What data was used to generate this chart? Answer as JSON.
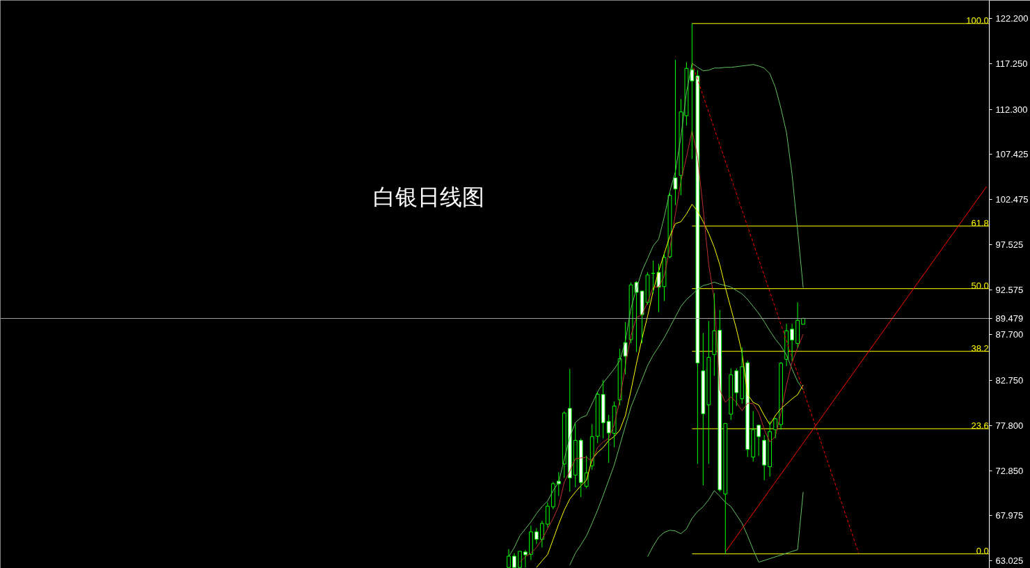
{
  "chart_data": {
    "type": "candlestick",
    "title": "白银日线图",
    "categories": [
      null,
      null,
      null,
      null,
      null,
      null,
      null,
      null,
      null,
      null,
      null,
      null,
      null,
      null,
      null,
      null,
      null,
      null,
      null,
      null,
      null,
      null,
      null,
      null,
      null,
      null,
      null,
      null,
      null,
      null,
      null,
      null,
      null,
      null,
      null,
      null,
      null,
      null,
      null,
      null,
      null,
      null,
      null,
      null,
      null,
      null,
      null,
      null,
      null,
      null,
      null,
      null,
      null,
      null,
      null,
      null,
      null,
      null,
      null,
      null,
      null,
      null,
      null,
      null,
      null,
      null,
      null,
      null,
      null,
      null,
      null,
      null,
      null,
      null,
      null,
      null,
      null,
      null,
      null,
      null,
      null,
      null,
      null,
      null,
      null,
      null,
      null,
      null,
      null,
      null,
      null,
      null,
      null,
      null,
      null,
      null,
      null,
      null,
      null,
      null,
      null,
      null,
      null,
      null,
      null,
      null,
      null,
      null,
      null,
      null,
      null,
      null,
      null,
      null,
      null,
      null,
      null,
      null,
      null,
      null,
      null,
      null,
      null,
      null,
      null,
      null,
      null,
      null,
      null,
      null,
      null,
      null,
      null,
      null,
      null,
      null,
      null,
      null,
      null,
      null,
      null,
      null,
      null,
      null,
      null,
      null,
      null,
      null,
      null,
      null,
      null,
      null,
      null,
      null,
      null,
      null,
      null,
      null,
      null,
      null,
      null,
      null,
      null,
      null,
      null,
      null,
      null,
      null,
      null,
      null,
      null,
      null,
      null,
      null,
      null,
      null,
      null,
      null
    ],
    "ohlc": [
      null,
      null,
      null,
      null,
      null,
      null,
      null,
      null,
      null,
      null,
      null,
      null,
      null,
      null,
      null,
      null,
      null,
      null,
      null,
      null,
      null,
      null,
      null,
      null,
      null,
      null,
      null,
      null,
      null,
      null,
      null,
      null,
      null,
      null,
      null,
      null,
      null,
      null,
      null,
      null,
      null,
      null,
      null,
      null,
      null,
      null,
      null,
      null,
      null,
      null,
      null,
      null,
      null,
      null,
      null,
      null,
      null,
      null,
      null,
      null,
      null,
      null,
      null,
      null,
      null,
      null,
      null,
      null,
      null,
      null,
      null,
      null,
      null,
      null,
      null,
      null,
      null,
      null,
      null,
      null,
      null,
      null,
      null,
      null,
      null,
      null,
      null,
      null,
      null,
      null,
      null,
      [
        62.3,
        64.29,
        62.3,
        63.53
      ],
      [
        63.53,
        63.86,
        62.3,
        62.3
      ],
      [
        62.3,
        64.06,
        62.3,
        64.06
      ],
      [
        63.99,
        64.19,
        62.3,
        63.68
      ],
      [
        63.73,
        66.87,
        63.1,
        66.19
      ],
      [
        66.19,
        66.59,
        64.87,
        65.37
      ],
      [
        65.37,
        67.4,
        64.49,
        67.1
      ],
      [
        67.02,
        69.42,
        66.64,
        68.99
      ],
      [
        68.92,
        71.62,
        68.66,
        71.44
      ],
      [
        71.72,
        72.71,
        70.1,
        71.42
      ],
      [
        73.59,
        79.33,
        72.07,
        79.16
      ],
      [
        79.66,
        83.96,
        70.56,
        72.07
      ],
      [
        72.38,
        78.02,
        71.06,
        76.17
      ],
      [
        76.17,
        76.38,
        69.98,
        71.57
      ],
      [
        71.16,
        74.48,
        70.94,
        72.63
      ],
      [
        73.39,
        77.95,
        72.96,
        76.58
      ],
      [
        76.62,
        81.48,
        75.87,
        81.21
      ],
      [
        81.18,
        82.75,
        76.38,
        78.1
      ],
      [
        78.25,
        78.95,
        73.72,
        76.98
      ],
      [
        76.93,
        80.42,
        75.41,
        79.92
      ],
      [
        80.6,
        86.16,
        79.98,
        85.08
      ],
      [
        86.84,
        89.07,
        83.37,
        85.35
      ],
      [
        87.17,
        93.41,
        86.77,
        93.14
      ],
      [
        93.41,
        93.55,
        85.81,
        92.33
      ],
      [
        92.47,
        92.47,
        86.77,
        89.89
      ],
      [
        91.24,
        94.51,
        90.97,
        94.23
      ],
      [
        94.39,
        95.78,
        92.19,
        94.42
      ],
      [
        94.51,
        95.46,
        90.16,
        92.88
      ],
      [
        92.95,
        96.54,
        91.38,
        96.13
      ],
      [
        96.21,
        103.19,
        96.05,
        102.92
      ],
      [
        104.82,
        117.72,
        101.84,
        103.6
      ],
      [
        105.09,
        113.43,
        102.92,
        112.02
      ],
      [
        111.61,
        117.45,
        110.52,
        116.77
      ],
      [
        116.63,
        121.67,
        106.87,
        115.41
      ],
      [
        115.95,
        116.58,
        73.59,
        84.62
      ],
      [
        83.76,
        87.88,
        71.27,
        79.08
      ],
      [
        80.04,
        89.2,
        73.59,
        85.23
      ],
      [
        85.53,
        92.25,
        83.2,
        88.13
      ],
      [
        88.19,
        90.41,
        70.56,
        70.76
      ],
      [
        70.31,
        78.02,
        63.78,
        78.02
      ],
      [
        79.03,
        84.01,
        78.4,
        83.33
      ],
      [
        83.76,
        84.01,
        79.92,
        81.38
      ],
      [
        80.72,
        86.31,
        80.17,
        84.21
      ],
      [
        84.64,
        84.89,
        74.35,
        75.18
      ],
      [
        74.35,
        79.36,
        73.85,
        77.34
      ],
      [
        77.82,
        77.89,
        74.48,
        76.58
      ],
      [
        76.17,
        76.75,
        71.82,
        73.47
      ],
      [
        73.29,
        78.27,
        72.2,
        77.13
      ],
      [
        77.34,
        78.65,
        76.38,
        78.52
      ],
      [
        77.89,
        84.72,
        77.34,
        84.59
      ],
      [
        85.02,
        88.89,
        84.26,
        88.13
      ],
      [
        88.31,
        88.89,
        84.85,
        87.13
      ],
      [
        86.75,
        91.24,
        86.29,
        89.27
      ],
      [
        88.84,
        89.55,
        88.84,
        89.479
      ],
      null,
      null,
      null,
      null,
      null,
      null,
      null,
      null,
      null,
      null,
      null,
      null,
      null,
      null,
      null,
      null,
      null,
      null,
      null,
      null,
      null,
      null,
      null,
      null,
      null,
      null,
      null,
      null,
      null,
      null,
      null,
      null,
      null
    ],
    "color": "#00ff00",
    "colors": [
      null,
      null,
      null,
      null,
      null,
      null,
      null,
      null,
      null,
      null,
      null,
      null,
      null,
      null,
      null,
      null,
      null,
      null,
      null,
      null,
      null,
      null,
      null,
      null,
      null,
      null,
      null,
      null,
      null,
      null,
      null,
      null,
      null,
      null,
      null,
      null,
      null,
      null,
      null,
      null,
      null,
      null,
      null,
      null,
      null,
      null,
      null,
      null,
      null,
      null,
      null,
      null,
      null,
      null,
      null,
      null,
      null,
      null,
      null,
      null,
      null,
      null,
      null,
      null,
      null,
      null,
      null,
      null,
      null,
      null,
      null,
      null,
      null,
      null,
      null,
      null,
      null,
      null,
      null,
      null,
      null,
      null,
      null,
      null,
      null,
      null,
      null,
      null,
      null,
      null,
      null,
      "#000000",
      "#ffffff",
      "#000000",
      "#ffffff",
      "#000000",
      "#ffffff",
      "#000000",
      "#000000",
      "#000000",
      "#ffffff",
      "#000000",
      "#ffffff",
      "#000000",
      "#ffffff",
      "#000000",
      "#000000",
      "#000000",
      "#ffffff",
      "#ffffff",
      "#000000",
      "#000000",
      "#ffffff",
      "#000000",
      "#ffffff",
      "#ffffff",
      "#000000",
      "#000000",
      "#ffffff",
      "#000000",
      "#000000",
      "#ffffff",
      "#000000",
      "#000000",
      "#ffffff",
      "#ffffff",
      "#ffffff",
      "#000000",
      "#000000",
      "#ffffff",
      "#000000",
      "#000000",
      "#ffffff",
      "#000000",
      "#ffffff",
      "#000000",
      "#ffffff",
      "#ffffff",
      "#000000",
      "#000000",
      "#000000",
      "#000000",
      "#ffffff",
      "#000000",
      "#000000",
      null,
      null,
      null,
      null,
      null,
      null,
      null,
      null,
      null,
      null,
      null,
      null,
      null,
      null,
      null,
      null,
      null,
      null,
      null,
      null,
      null,
      null,
      null,
      null,
      null,
      null,
      null,
      null,
      null,
      null,
      null,
      null,
      null
    ],
    "series": [
      {
        "type": "line",
        "color": "#60c060",
        "values": [
          null,
          null,
          null,
          null,
          null,
          null,
          null,
          null,
          null,
          null,
          null,
          null,
          null,
          null,
          null,
          null,
          null,
          null,
          null,
          null,
          null,
          null,
          null,
          null,
          null,
          null,
          null,
          null,
          null,
          null,
          null,
          null,
          null,
          null,
          null,
          null,
          null,
          null,
          null,
          null,
          null,
          null,
          null,
          null,
          null,
          null,
          null,
          null,
          null,
          null,
          null,
          null,
          null,
          null,
          null,
          null,
          null,
          null,
          null,
          null,
          null,
          null,
          null,
          null,
          null,
          null,
          null,
          null,
          null,
          null,
          null,
          null,
          null,
          null,
          null,
          null,
          null,
          null,
          null,
          null,
          null,
          null,
          null,
          null,
          null,
          null,
          null,
          null,
          null,
          null,
          null,
          63.48,
          64.46,
          65.75,
          66.51,
          67.27,
          68.18,
          68.94,
          69.55,
          70.69,
          71.6,
          74.1,
          76.53,
          78.12,
          78.65,
          78.88,
          80.17,
          81.46,
          82.44,
          83.2,
          83.96,
          84.87,
          87.0,
          90.56,
          92.76,
          94.66,
          96.02,
          97.39,
          98.15,
          100.58,
          103.31,
          105.51,
          109.3,
          114.16,
          117.34,
          116.89,
          116.51,
          116.58,
          116.81,
          116.81,
          116.89,
          116.89,
          116.96,
          117.04,
          117.11,
          117.19,
          117.04,
          116.81,
          116.2,
          114.69,
          112.41,
          109.76,
          105.2,
          99.13,
          92.84,
          null,
          null,
          null,
          null,
          null,
          null,
          null,
          null,
          null,
          null,
          null,
          null,
          null,
          null,
          null,
          null,
          null,
          null,
          null,
          null,
          null,
          null,
          null,
          null,
          null,
          null,
          null,
          null,
          null,
          null,
          null,
          null,
          null
        ]
      },
      {
        "type": "line",
        "color": "#60c060",
        "values": [
          null,
          null,
          null,
          null,
          null,
          null,
          null,
          null,
          null,
          null,
          null,
          null,
          null,
          null,
          null,
          null,
          null,
          null,
          null,
          null,
          null,
          null,
          null,
          null,
          null,
          null,
          null,
          null,
          null,
          null,
          null,
          null,
          null,
          null,
          null,
          null,
          null,
          null,
          null,
          null,
          null,
          null,
          null,
          null,
          null,
          null,
          null,
          null,
          null,
          null,
          null,
          null,
          null,
          null,
          null,
          null,
          null,
          null,
          null,
          null,
          null,
          null,
          null,
          null,
          null,
          null,
          null,
          null,
          null,
          null,
          null,
          null,
          null,
          null,
          null,
          null,
          null,
          null,
          null,
          null,
          null,
          null,
          null,
          null,
          null,
          null,
          null,
          null,
          null,
          null,
          null,
          null,
          null,
          null,
          null,
          null,
          null,
          null,
          null,
          null,
          null,
          null,
          62.57,
          63.86,
          64.77,
          65.75,
          67.12,
          68.56,
          70.15,
          71.82,
          73.49,
          75.62,
          77.74,
          79.79,
          81.31,
          82.82,
          84.34,
          85.48,
          86.39,
          87.38,
          88.51,
          89.65,
          90.79,
          91.55,
          92.08,
          92.69,
          93.07,
          93.22,
          93.44,
          93.22,
          93.07,
          92.91,
          92.53,
          92.15,
          91.55,
          90.79,
          90.03,
          89.12,
          88.13,
          87.22,
          86.46,
          85.48,
          83.96,
          82.6,
          81.69,
          null,
          null,
          null,
          null,
          null,
          null,
          null,
          null,
          null,
          null,
          null,
          null,
          null,
          null,
          null,
          null,
          null,
          null,
          null,
          null,
          null,
          null,
          null,
          null,
          null,
          null,
          null,
          null,
          null,
          null,
          null,
          null,
          null
        ]
      },
      {
        "type": "line",
        "color": "#60c060",
        "values": [
          null,
          null,
          null,
          null,
          null,
          null,
          null,
          null,
          null,
          null,
          null,
          null,
          null,
          null,
          null,
          null,
          null,
          null,
          null,
          null,
          null,
          null,
          null,
          null,
          null,
          null,
          null,
          null,
          null,
          null,
          null,
          null,
          null,
          null,
          null,
          null,
          null,
          null,
          null,
          null,
          null,
          null,
          null,
          null,
          null,
          null,
          null,
          null,
          null,
          null,
          null,
          null,
          null,
          null,
          null,
          null,
          null,
          null,
          null,
          null,
          null,
          null,
          null,
          null,
          null,
          null,
          null,
          null,
          null,
          null,
          null,
          null,
          null,
          null,
          null,
          null,
          null,
          null,
          null,
          null,
          null,
          null,
          null,
          null,
          null,
          null,
          null,
          null,
          null,
          null,
          null,
          null,
          null,
          null,
          null,
          null,
          null,
          null,
          null,
          null,
          null,
          null,
          null,
          null,
          null,
          null,
          null,
          null,
          null,
          null,
          null,
          null,
          null,
          null,
          null,
          null,
          63.48,
          64.62,
          65.6,
          66.13,
          66.36,
          66.28,
          65.98,
          66.51,
          67.65,
          68.41,
          68.94,
          69.7,
          70.69,
          70.08,
          69.4,
          68.94,
          68.03,
          67.12,
          65.75,
          64.24,
          62.87,
          null,
          null,
          null,
          null,
          null,
          null,
          64.24,
          70.53,
          null,
          null,
          null,
          null,
          null,
          null,
          null,
          null,
          null,
          null,
          null,
          null,
          null,
          null,
          null,
          null,
          null,
          null,
          null,
          null,
          null,
          null,
          null,
          null,
          null,
          null,
          null,
          null,
          null,
          null,
          null,
          null,
          null
        ]
      },
      {
        "type": "line",
        "color": "#ffff00",
        "values": [
          null,
          null,
          null,
          null,
          null,
          null,
          null,
          null,
          null,
          null,
          null,
          null,
          null,
          null,
          null,
          null,
          null,
          null,
          null,
          null,
          null,
          null,
          null,
          null,
          null,
          null,
          null,
          null,
          null,
          null,
          null,
          null,
          null,
          null,
          null,
          null,
          null,
          null,
          null,
          null,
          null,
          null,
          null,
          null,
          null,
          null,
          null,
          null,
          null,
          null,
          null,
          null,
          null,
          null,
          null,
          null,
          null,
          null,
          null,
          null,
          null,
          null,
          null,
          null,
          null,
          null,
          null,
          null,
          null,
          null,
          null,
          null,
          null,
          null,
          null,
          null,
          null,
          null,
          null,
          null,
          null,
          null,
          null,
          null,
          null,
          null,
          null,
          null,
          null,
          null,
          null,
          null,
          null,
          null,
          null,
          null,
          62.3,
          63.02,
          63.71,
          65.37,
          67.04,
          68.56,
          69.77,
          70.53,
          71.22,
          71.82,
          74.1,
          74.86,
          75.39,
          76.15,
          76.6,
          77.29,
          78.88,
          81.61,
          84.57,
          87.3,
          89.73,
          92.46,
          94.66,
          96.56,
          98.45,
          99.82,
          100.04,
          100.88,
          101.94,
          101.18,
          100.04,
          98.76,
          97.24,
          95.34,
          92.84,
          90.56,
          88.29,
          85.71,
          81.16,
          80.32,
          80.02,
          78.88,
          77.89,
          78.88,
          79.64,
          80.17,
          80.7,
          81.16,
          82.22,
          null,
          null,
          null,
          null,
          null,
          null,
          null,
          null,
          null,
          null,
          null,
          null,
          null,
          null,
          null,
          null,
          null,
          null,
          null,
          null,
          null,
          null,
          null,
          null,
          null,
          null,
          null,
          null,
          null,
          null,
          null,
          null,
          null
        ]
      },
      {
        "type": "line",
        "color": "#c03030",
        "values": [
          null,
          null,
          null,
          null,
          null,
          null,
          null,
          null,
          null,
          null,
          null,
          null,
          null,
          null,
          null,
          null,
          null,
          null,
          null,
          null,
          null,
          null,
          null,
          null,
          null,
          null,
          null,
          null,
          null,
          null,
          null,
          null,
          null,
          null,
          null,
          null,
          null,
          null,
          null,
          null,
          null,
          null,
          null,
          null,
          null,
          null,
          null,
          null,
          null,
          null,
          null,
          null,
          null,
          null,
          null,
          null,
          null,
          null,
          null,
          null,
          null,
          null,
          null,
          null,
          null,
          null,
          null,
          null,
          null,
          null,
          null,
          null,
          null,
          null,
          null,
          null,
          null,
          null,
          null,
          null,
          null,
          null,
          null,
          null,
          null,
          null,
          null,
          null,
          null,
          null,
          null,
          null,
          null,
          62.87,
          63.48,
          63.86,
          64.46,
          65.37,
          66.51,
          67.65,
          69.02,
          71.6,
          72.81,
          74.17,
          74.25,
          74.33,
          73.87,
          75.39,
          76.0,
          76.38,
          77.89,
          80.55,
          84.34,
          87.6,
          89.58,
          89.88,
          91.24,
          92.91,
          92.91,
          94.13,
          97.09,
          100.88,
          104.45,
          107.1,
          109.98,
          107.1,
          101.41,
          95.34,
          91.55,
          81.69,
          80.32,
          80.93,
          80.32,
          79.41,
          80.24,
          80.17,
          79.18,
          77.36,
          76.0,
          76.6,
          79.18,
          82.22,
          84.72,
          86.24,
          87.75,
          null,
          null,
          null,
          null,
          null,
          null,
          null,
          null,
          null,
          null,
          null,
          null,
          null,
          null,
          null,
          null,
          null,
          null,
          null,
          null,
          null,
          null,
          null,
          null,
          null,
          null,
          null,
          null,
          null,
          null,
          null,
          null,
          null
        ]
      },
      {
        "type": "line",
        "color": "#ff0000",
        "line_style": "dashed",
        "values": [
          null,
          null,
          null,
          null,
          null,
          null,
          null,
          null,
          null,
          null,
          null,
          null,
          null,
          null,
          null,
          null,
          null,
          null,
          null,
          null,
          null,
          null,
          null,
          null,
          null,
          null,
          null,
          null,
          null,
          null,
          null,
          null,
          null,
          null,
          null,
          null,
          null,
          null,
          null,
          null,
          null,
          null,
          null,
          null,
          null,
          null,
          null,
          null,
          null,
          null,
          null,
          null,
          null,
          null,
          null,
          null,
          null,
          null,
          null,
          null,
          null,
          null,
          null,
          null,
          null,
          null,
          null,
          null,
          null,
          null,
          null,
          null,
          null,
          null,
          null,
          null,
          null,
          null,
          null,
          null,
          null,
          null,
          null,
          null,
          null,
          null,
          null,
          null,
          null,
          null,
          null,
          null,
          null,
          null,
          null,
          null,
          null,
          null,
          null,
          null,
          null,
          null,
          null,
          null,
          null,
          null,
          null,
          null,
          null,
          null,
          null,
          null,
          null,
          null,
          null,
          null,
          null,
          null,
          null,
          null,
          null,
          null,
          null,
          null,
          117.34,
          null,
          null,
          null,
          null,
          null,
          null,
          null,
          null,
          null,
          null,
          null,
          null,
          null,
          null,
          null,
          null,
          null,
          null,
          null,
          null,
          null,
          null,
          null,
          null,
          null,
          null,
          null,
          null,
          null,
          63.86,
          null,
          null,
          null,
          null,
          null,
          null,
          null,
          null,
          null,
          null,
          null,
          null,
          null,
          null,
          null,
          null,
          null,
          null,
          null,
          null,
          null,
          null,
          null
        ]
      },
      {
        "type": "line",
        "color": "#ff0000",
        "line_style": "solid",
        "values": [
          null,
          null,
          null,
          null,
          null,
          null,
          null,
          null,
          null,
          null,
          null,
          null,
          null,
          null,
          null,
          null,
          null,
          null,
          null,
          null,
          null,
          null,
          null,
          null,
          null,
          null,
          null,
          null,
          null,
          null,
          null,
          null,
          null,
          null,
          null,
          null,
          null,
          null,
          null,
          null,
          null,
          null,
          null,
          null,
          null,
          null,
          null,
          null,
          null,
          null,
          null,
          null,
          null,
          null,
          null,
          null,
          null,
          null,
          null,
          null,
          null,
          null,
          null,
          null,
          null,
          null,
          null,
          null,
          null,
          null,
          null,
          null,
          null,
          null,
          null,
          null,
          null,
          null,
          null,
          null,
          null,
          null,
          null,
          null,
          null,
          null,
          null,
          null,
          null,
          null,
          null,
          null,
          null,
          null,
          null,
          null,
          null,
          null,
          null,
          null,
          null,
          null,
          null,
          null,
          null,
          null,
          null,
          null,
          null,
          null,
          null,
          null,
          null,
          null,
          null,
          null,
          null,
          null,
          null,
          null,
          null,
          null,
          null,
          null,
          null,
          null,
          null,
          null,
          null,
          null,
          63.99,
          null,
          null,
          null,
          null,
          null,
          null,
          null,
          null,
          null,
          null,
          null,
          null,
          null,
          null,
          null,
          null,
          null,
          null,
          null,
          null,
          null,
          null,
          null,
          null,
          null,
          null,
          null,
          null,
          null,
          null,
          null,
          null,
          null,
          null,
          null,
          null,
          null,
          null,
          null,
          null,
          null,
          null,
          null,
          null,
          null,
          null,
          103.87
        ]
      }
    ],
    "ref_lines": [
      {
        "axis": "y",
        "value": 121.67,
        "color": "#ffff00"
      },
      {
        "axis": "y",
        "value": 99.56,
        "color": "#ffff00"
      },
      {
        "axis": "y",
        "value": 92.73,
        "color": "#ffff00"
      },
      {
        "axis": "y",
        "value": 85.89,
        "color": "#ffff00"
      },
      {
        "axis": "y",
        "value": 77.44,
        "color": "#ffff00"
      },
      {
        "axis": "y",
        "value": 63.78,
        "color": "#ffff00"
      },
      {
        "axis": "y",
        "value": 89.479,
        "color": "#a0a0a0"
      }
    ],
    "annotations": [
      {
        "text": "100.0",
        "y": 121.67
      },
      {
        "text": "61.8",
        "y": 99.56
      },
      {
        "text": "50.0",
        "y": 92.73
      },
      {
        "text": "38.2",
        "y": 85.89
      },
      {
        "text": "23.6",
        "y": 77.44
      },
      {
        "text": "0.0",
        "y": 63.78
      }
    ],
    "ylim": [
      62.2,
      124.2
    ],
    "yticks": [
      {
        "value": 122.2,
        "label": "122.200"
      },
      {
        "value": 117.25,
        "label": "117.250"
      },
      {
        "value": 112.3,
        "label": "112.300"
      },
      {
        "value": 107.425,
        "label": "107.425"
      },
      {
        "value": 102.475,
        "label": "102.475"
      },
      {
        "value": 97.525,
        "label": "97.525"
      },
      {
        "value": 92.575,
        "label": "92.575"
      },
      89.479,
      {
        "value": 87.7,
        "label": "87.700"
      },
      {
        "value": 82.75,
        "label": "82.750"
      },
      {
        "value": 77.8,
        "label": "77.800"
      },
      {
        "value": 72.85,
        "label": "72.850"
      },
      {
        "value": 67.975,
        "label": "67.975"
      },
      {
        "value": 63.025,
        "label": "63.025"
      }
    ],
    "tick_labels": "y"
  }
}
